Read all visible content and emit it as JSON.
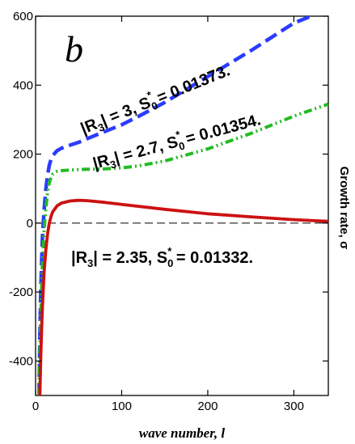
{
  "chart_data": {
    "type": "line",
    "panel_label": "b",
    "xlabel": "wave number, l",
    "ylabel": "Growth rate, σ",
    "xlim": [
      0,
      340
    ],
    "ylim": [
      -500,
      600
    ],
    "x_ticks": [
      0,
      100,
      200,
      300
    ],
    "y_ticks": [
      -400,
      -200,
      0,
      200,
      400,
      600
    ],
    "x_tick_labels": [
      "0",
      "100",
      "200",
      "300"
    ],
    "y_tick_labels": [
      "-400",
      "-200",
      "0",
      "200",
      "400",
      "600"
    ],
    "zero_line": true,
    "series": [
      {
        "name": "|R3| = 3, S0* = 0.01373.",
        "label_parts": [
          "|R",
          "3",
          "| = 3, S",
          "0",
          "*",
          " = 0.01373."
        ],
        "color": "#2a3cff",
        "dash": "dashed",
        "x": [
          4,
          5,
          6,
          7,
          8,
          10,
          12,
          14,
          16,
          18,
          20,
          25,
          30,
          40,
          50,
          60,
          80,
          100,
          120,
          150,
          200,
          250,
          300,
          320
        ],
        "y": [
          -500,
          -330,
          -200,
          -110,
          -40,
          40,
          100,
          140,
          168,
          185,
          196,
          210,
          217,
          226,
          234,
          245,
          265,
          285,
          310,
          350,
          425,
          500,
          580,
          600
        ]
      },
      {
        "name": "|R3| = 2.7, S0* = 0.01354.",
        "label_parts": [
          "|R",
          "3",
          "| = 2.7, S",
          "0",
          "*",
          " = 0.01354."
        ],
        "color": "#22bb22",
        "dash": "dashdotdot",
        "x": [
          4,
          5,
          6,
          7,
          8,
          10,
          12,
          14,
          16,
          18,
          20,
          25,
          30,
          40,
          50,
          60,
          80,
          100,
          120,
          150,
          200,
          250,
          300,
          340
        ],
        "y": [
          -500,
          -380,
          -270,
          -185,
          -115,
          -20,
          45,
          90,
          118,
          132,
          142,
          150,
          152,
          154,
          155,
          156,
          157,
          160,
          166,
          180,
          215,
          260,
          310,
          345
        ]
      },
      {
        "name": "|R3| = 2.35, S0* = 0.01332.",
        "label_parts": [
          "|R",
          "3",
          "| = 2.35, S",
          "0",
          "*",
          " = 0.01332."
        ],
        "color": "#cc1111",
        "dash": "solid",
        "x": [
          5,
          6,
          7,
          8,
          10,
          12,
          14,
          16,
          18,
          20,
          25,
          30,
          40,
          50,
          60,
          80,
          100,
          150,
          200,
          250,
          300,
          340
        ],
        "y": [
          -500,
          -390,
          -305,
          -240,
          -140,
          -75,
          -30,
          0,
          20,
          33,
          50,
          58,
          64,
          66,
          65,
          60,
          54,
          40,
          27,
          18,
          10,
          5
        ]
      }
    ]
  }
}
